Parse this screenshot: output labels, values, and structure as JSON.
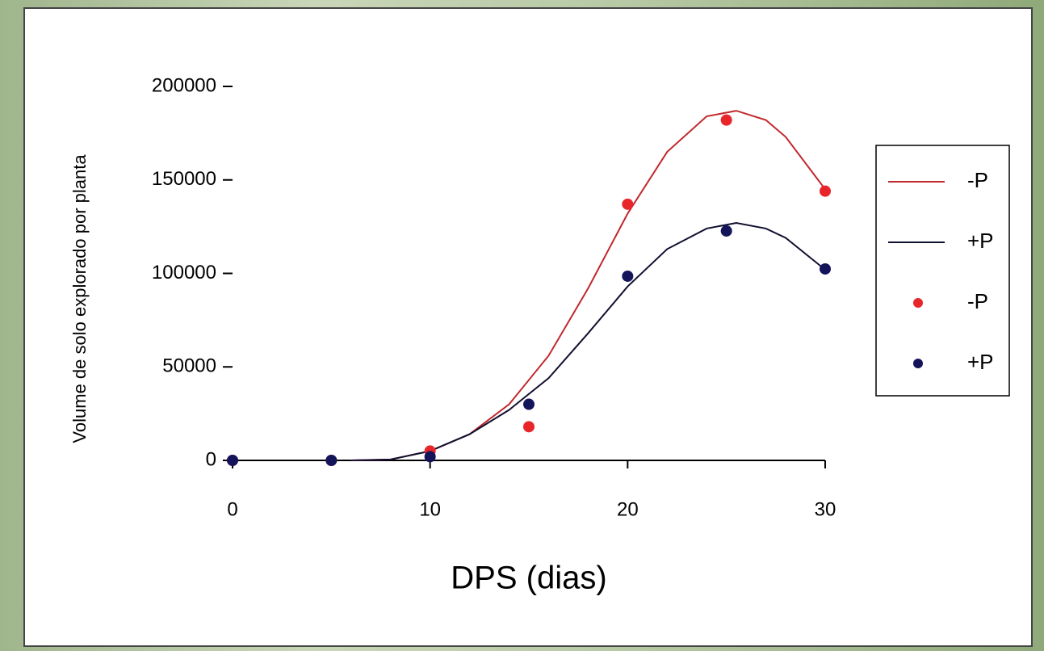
{
  "chart_data": {
    "type": "scatter",
    "x_label": "DPS (dias)",
    "y_label": "Volume de solo explorado por planta",
    "xlim": [
      0,
      30
    ],
    "xticks": [
      0,
      10,
      20,
      30
    ],
    "ylim": [
      0,
      200000
    ],
    "yticks": [
      0,
      50000,
      100000,
      150000,
      200000
    ],
    "series": [
      {
        "name": "-P",
        "color": "#c0282d",
        "style": "line",
        "x": [
          6,
          8,
          10,
          12,
          14,
          16,
          18,
          20,
          22,
          24,
          25.5,
          27,
          28,
          30
        ],
        "values": [
          0,
          500,
          5000,
          14000,
          30000,
          56000,
          92000,
          132000,
          165000,
          184000,
          187000,
          182000,
          173000,
          145000
        ]
      },
      {
        "name": "+P",
        "color": "#101030",
        "style": "line",
        "x": [
          6,
          8,
          10,
          12,
          14,
          16,
          18,
          20,
          22,
          24,
          25.5,
          27,
          28,
          30
        ],
        "values": [
          0,
          500,
          5000,
          14000,
          27000,
          44000,
          68000,
          93000,
          113000,
          124000,
          127000,
          124000,
          119000,
          102000
        ]
      },
      {
        "name": "-P",
        "color": "#e8262a",
        "style": "points",
        "x": [
          0,
          5,
          10,
          15,
          20,
          25,
          30
        ],
        "values": [
          0,
          0,
          5000,
          18000,
          137000,
          182000,
          144000
        ]
      },
      {
        "name": "+P",
        "color": "#14145a",
        "style": "points",
        "x": [
          0,
          5,
          10,
          15,
          20,
          25,
          30
        ],
        "values": [
          0,
          0,
          2000,
          30000,
          98500,
          122700,
          102400
        ]
      }
    ]
  }
}
